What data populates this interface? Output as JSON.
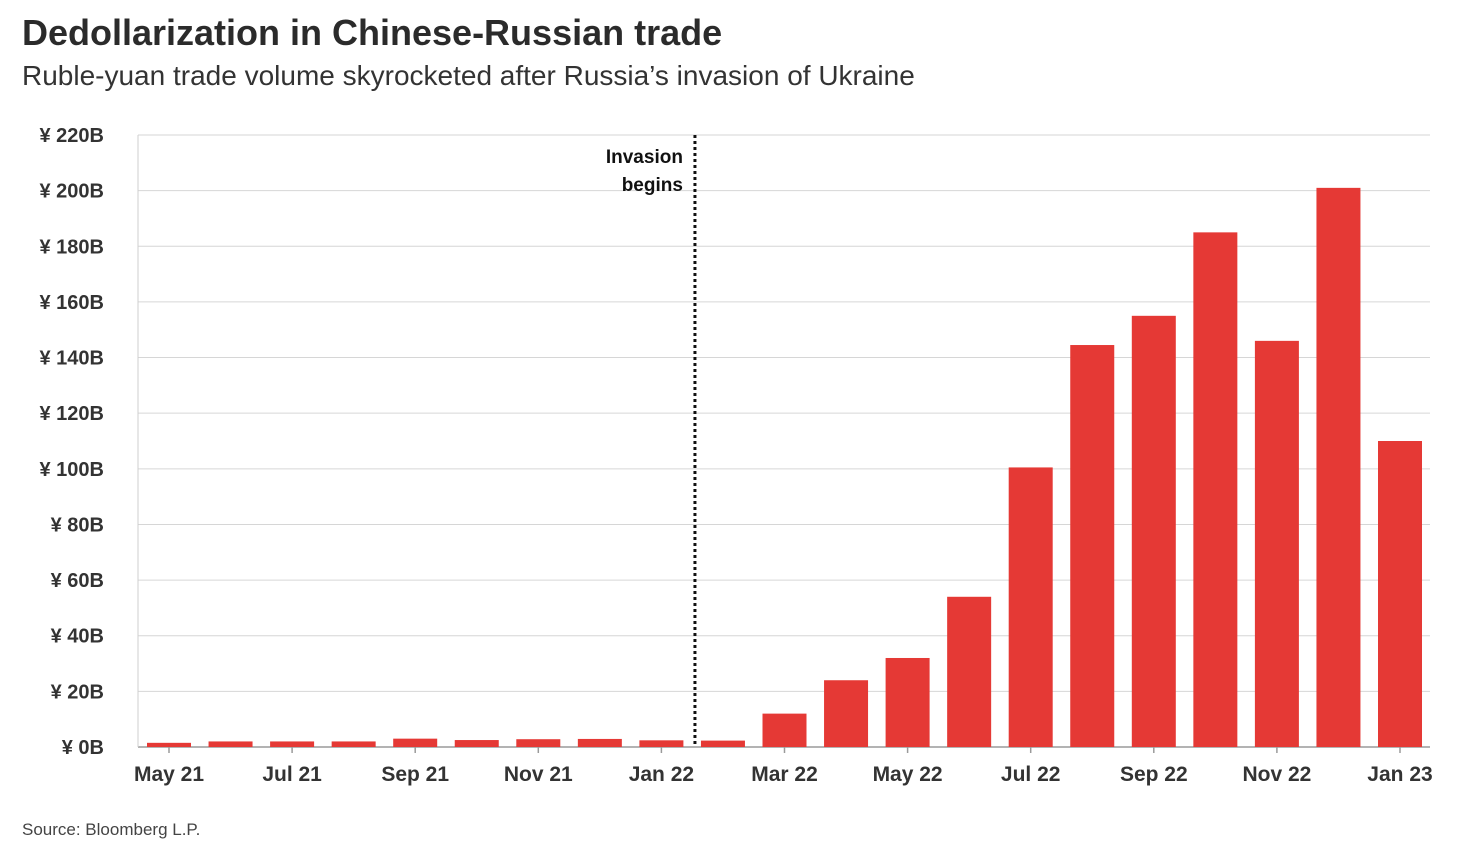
{
  "title": "Dedollarization in Chinese-Russian trade",
  "subtitle": "Ruble-yuan trade volume skyrocketed after Russia’s invasion of Ukraine",
  "source": "Source: Bloomberg L.P.",
  "chart_data": {
    "type": "bar",
    "categories": [
      "May 21",
      "Jun 21",
      "Jul 21",
      "Aug 21",
      "Sep 21",
      "Oct 21",
      "Nov 21",
      "Dec 21",
      "Jan 22",
      "Feb 22",
      "Mar 22",
      "Apr 22",
      "May 22",
      "Jun 22",
      "Jul 22",
      "Aug 22",
      "Sep 22",
      "Oct 22",
      "Nov 22",
      "Dec 22",
      "Jan 23"
    ],
    "values": [
      1.5,
      2,
      2,
      2,
      3,
      2.5,
      2.8,
      2.9,
      2.4,
      2.3,
      12,
      24,
      32,
      54,
      100.5,
      144.5,
      155,
      185,
      146,
      201,
      110
    ],
    "x_tick_labels": [
      "May 21",
      "Jul 21",
      "Sep 21",
      "Nov 21",
      "Jan 22",
      "Mar 22",
      "May 22",
      "Jul 22",
      "Sep 22",
      "Nov 22",
      "Jan 23"
    ],
    "y_ticks": [
      0,
      20,
      40,
      60,
      80,
      100,
      120,
      140,
      160,
      180,
      200,
      220
    ],
    "y_tick_labels": [
      "¥ 0B",
      "¥ 20B",
      "¥ 40B",
      "¥ 60B",
      "¥ 80B",
      "¥ 100B",
      "¥ 120B",
      "¥ 140B",
      "¥ 160B",
      "¥ 180B",
      "¥ 200B",
      "¥ 220B"
    ],
    "ylim": [
      0,
      220
    ],
    "grid": true,
    "bar_color": "#e53935",
    "annotation": {
      "lines": [
        "Invasion",
        "begins"
      ],
      "after_category": "Feb 22",
      "style": "dotted vertical line"
    }
  }
}
